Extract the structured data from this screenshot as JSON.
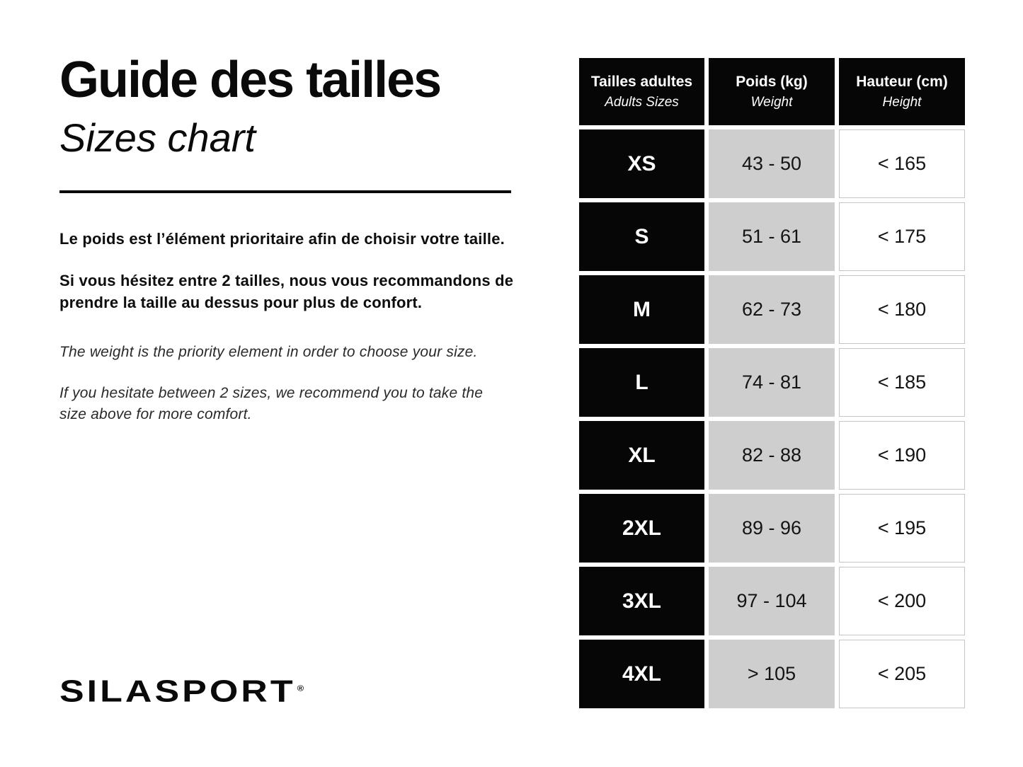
{
  "header": {
    "title_fr": "Guide des tailles",
    "title_en": "Sizes chart"
  },
  "intro": {
    "fr": [
      "Le poids est l’élément prioritaire afin de choisir votre taille.",
      "Si vous hésitez entre 2 tailles, nous vous recommandons de prendre la taille au dessus pour plus de confort."
    ],
    "en": [
      "The weight is the priority element in order to choose your size.",
      "If you hesitate between 2 sizes, we recommend you to take the size above for more comfort."
    ]
  },
  "brand": {
    "name": "SILASPORT",
    "mark": "®"
  },
  "chart_data": {
    "type": "table",
    "title": "Guide des tailles / Sizes chart",
    "columns": [
      {
        "fr": "Tailles adultes",
        "en": "Adults Sizes"
      },
      {
        "fr": "Poids (kg)",
        "en": "Weight"
      },
      {
        "fr": "Hauteur (cm)",
        "en": "Height"
      }
    ],
    "rows": [
      {
        "size": "XS",
        "weight": "43 - 50",
        "height": "< 165"
      },
      {
        "size": "S",
        "weight": "51 - 61",
        "height": "< 175"
      },
      {
        "size": "M",
        "weight": "62 - 73",
        "height": "< 180"
      },
      {
        "size": "L",
        "weight": "74 - 81",
        "height": "< 185"
      },
      {
        "size": "XL",
        "weight": "82 - 88",
        "height": "< 190"
      },
      {
        "size": "2XL",
        "weight": "89 - 96",
        "height": "< 195"
      },
      {
        "size": "3XL",
        "weight": "97 - 104",
        "height": "< 200"
      },
      {
        "size": "4XL",
        "weight": "> 105",
        "height": "< 205"
      }
    ]
  },
  "colors": {
    "cell_black": "#060606",
    "cell_gray": "#cecece",
    "cell_border": "#c5c5c5",
    "text": "#111111"
  }
}
